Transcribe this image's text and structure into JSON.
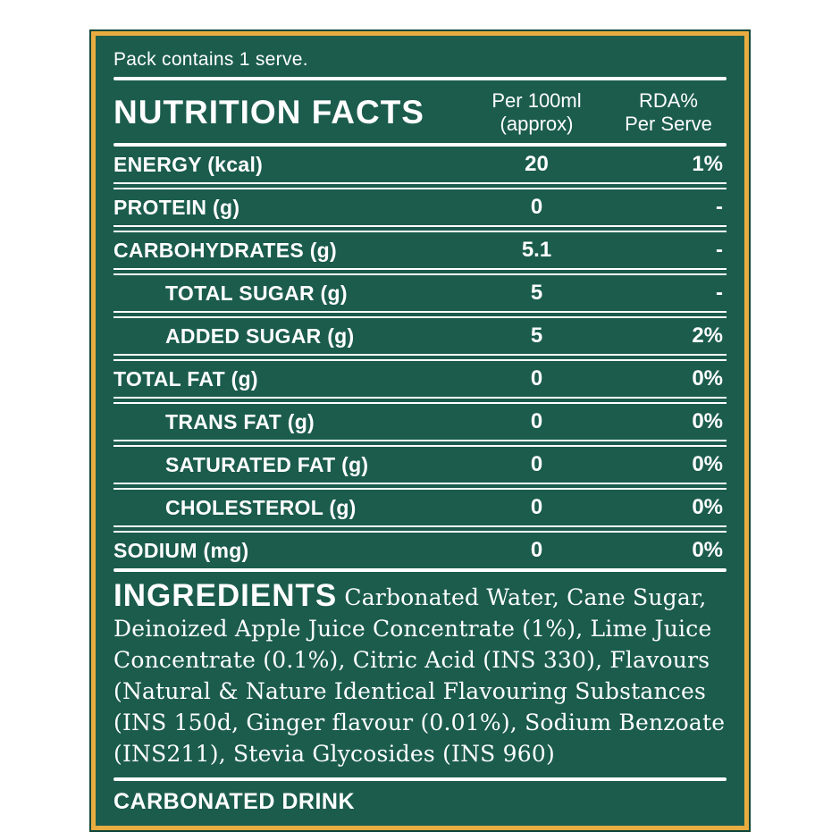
{
  "colors": {
    "panel_green": "#1b5c4d",
    "border_gold": "#e9ac40",
    "text_white": "#ffffff"
  },
  "header": {
    "pack_note": "Pack contains 1 serve.",
    "title": "NUTRITION FACTS",
    "col_amount": {
      "line1": "Per 100ml",
      "line2": "(approx)"
    },
    "col_rda": {
      "line1": "RDA%",
      "line2": "Per Serve"
    }
  },
  "nutrition_rows": [
    {
      "label": "ENERGY (kcal)",
      "per_100ml": "20",
      "rda_per_serve": "1%",
      "indent": false
    },
    {
      "label": "PROTEIN (g)",
      "per_100ml": "0",
      "rda_per_serve": "-",
      "indent": false
    },
    {
      "label": "CARBOHYDRATES (g)",
      "per_100ml": "5.1",
      "rda_per_serve": "-",
      "indent": false
    },
    {
      "label": "TOTAL SUGAR (g)",
      "per_100ml": "5",
      "rda_per_serve": "-",
      "indent": true
    },
    {
      "label": "ADDED SUGAR (g)",
      "per_100ml": "5",
      "rda_per_serve": "2%",
      "indent": true
    },
    {
      "label": "TOTAL FAT (g)",
      "per_100ml": "0",
      "rda_per_serve": "0%",
      "indent": false
    },
    {
      "label": "TRANS FAT (g)",
      "per_100ml": "0",
      "rda_per_serve": "0%",
      "indent": true
    },
    {
      "label": "SATURATED FAT (g)",
      "per_100ml": "0",
      "rda_per_serve": "0%",
      "indent": true
    },
    {
      "label": "CHOLESTEROL (g)",
      "per_100ml": "0",
      "rda_per_serve": "0%",
      "indent": true
    },
    {
      "label": "SODIUM (mg)",
      "per_100ml": "0",
      "rda_per_serve": "0%",
      "indent": false
    }
  ],
  "ingredients": {
    "heading": "INGREDIENTS",
    "text": "Carbonated Water,  Cane Sugar, Deinoized Apple Juice Concentrate (1%), Lime Juice Concentrate (0.1%), Citric Acid (INS 330), Flavours (Natural & Nature Identical Flavouring Substances (INS 150d, Ginger flavour (0.01%), Sodium Benzoate (INS211), Stevia Glycosides (INS 960)"
  },
  "footer": {
    "label": "CARBONATED DRINK"
  }
}
